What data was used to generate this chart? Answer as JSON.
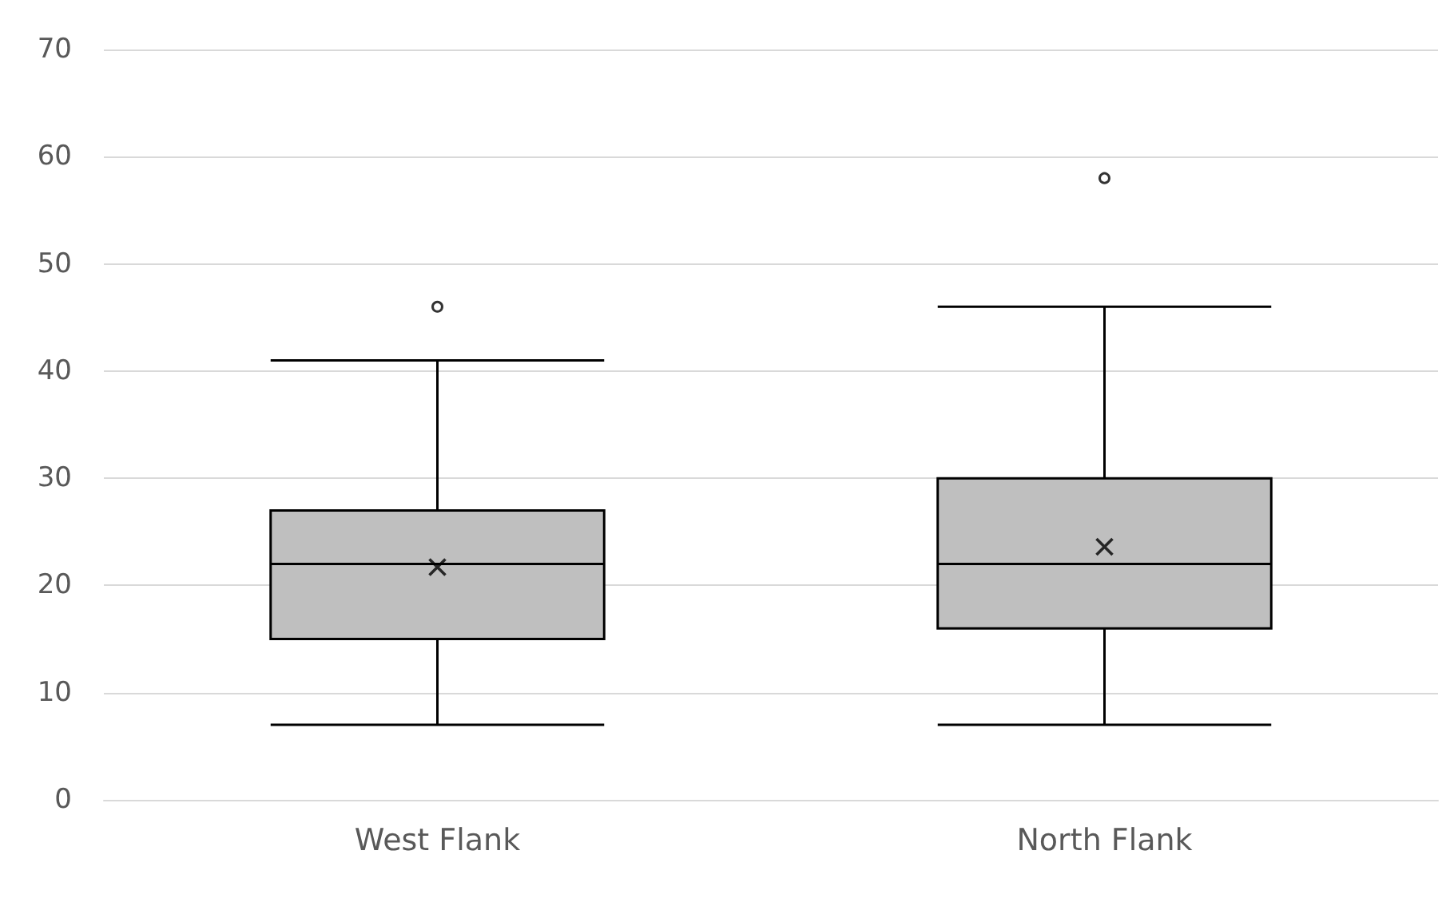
{
  "chart_data": {
    "type": "box",
    "categories": [
      "West Flank",
      "North Flank"
    ],
    "color": "#bfbfbf",
    "boxes": [
      {
        "low": 7,
        "q1": 15,
        "median": 22,
        "q3": 27,
        "high": 41,
        "mean": 21.7,
        "outliers": [
          46
        ]
      },
      {
        "low": 7,
        "q1": 16,
        "median": 22,
        "q3": 30,
        "high": 46,
        "mean": 23.6,
        "outliers": [
          58
        ]
      }
    ],
    "ylim": [
      0,
      70
    ],
    "yticks": [
      0,
      10,
      20,
      30,
      40,
      50,
      60,
      70
    ],
    "grid": "y"
  }
}
